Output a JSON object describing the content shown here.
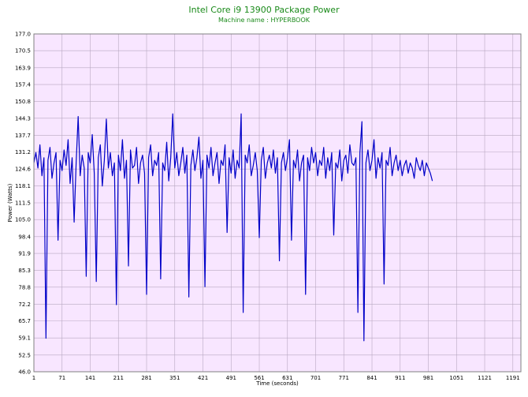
{
  "chart_data": {
    "type": "line",
    "title": "Intel Core i9 13900 Package Power",
    "subtitle": "Machine name : HYPERBOOK",
    "xlabel": "Time (seconds)",
    "ylabel": "Power (Watts)",
    "xlim": [
      1,
      1211
    ],
    "ylim": [
      46.0,
      177.0
    ],
    "x_ticks": [
      1,
      71,
      141,
      211,
      281,
      351,
      421,
      491,
      561,
      631,
      701,
      771,
      841,
      911,
      981,
      1051,
      1121,
      1191
    ],
    "y_ticks": [
      "46.0",
      "52.5",
      "59.1",
      "65.7",
      "72.2",
      "78.8",
      "85.3",
      "91.9",
      "98.4",
      "105.0",
      "111.5",
      "118.1",
      "124.6",
      "131.2",
      "137.7",
      "144.3",
      "150.8",
      "157.4",
      "163.9",
      "170.5",
      "177.0"
    ],
    "grid": true,
    "legend": "none",
    "colors": {
      "line": "#0000c8",
      "plot_bg": "#f8e6ff",
      "grid": "#b8a8c0",
      "title": "#1a8a1a"
    },
    "series": [
      {
        "name": "",
        "sampling_step_seconds": 5,
        "values": [
          127,
          131,
          125,
          134,
          122,
          129,
          59,
          128,
          133,
          121,
          127,
          131,
          97,
          128,
          124,
          132,
          126,
          136,
          119,
          129,
          104,
          127,
          145,
          122,
          130,
          125,
          83,
          131,
          127,
          138,
          123,
          81,
          129,
          134,
          118,
          128,
          144,
          125,
          131,
          122,
          127,
          72,
          130,
          124,
          136,
          121,
          128,
          87,
          132,
          125,
          126,
          133,
          119,
          127,
          130,
          123,
          76,
          129,
          134,
          122,
          128,
          126,
          131,
          82,
          127,
          124,
          135,
          120,
          129,
          146,
          125,
          131,
          122,
          127,
          133,
          123,
          130,
          75,
          126,
          132,
          124,
          129,
          137,
          121,
          128,
          79,
          130,
          125,
          133,
          122,
          127,
          131,
          119,
          128,
          126,
          134,
          100,
          129,
          123,
          132,
          121,
          128,
          125,
          146,
          69,
          130,
          127,
          134,
          122,
          126,
          131,
          124,
          98,
          128,
          133,
          121,
          127,
          130,
          125,
          132,
          123,
          129,
          89,
          127,
          131,
          124,
          129,
          136,
          97,
          128,
          125,
          132,
          120,
          127,
          130,
          76,
          129,
          124,
          133,
          127,
          131,
          122,
          128,
          126,
          133,
          121,
          129,
          124,
          131,
          99,
          127,
          125,
          132,
          120,
          128,
          130,
          123,
          134,
          127,
          126,
          129,
          69,
          131,
          143,
          58,
          127,
          132,
          124,
          128,
          136,
          121,
          129,
          125,
          131,
          80,
          128,
          126,
          133,
          122,
          127,
          130,
          124,
          128,
          122,
          126,
          128,
          123,
          127,
          125,
          121,
          129,
          126,
          124,
          128,
          122,
          127,
          125,
          123,
          120
        ]
      }
    ]
  }
}
